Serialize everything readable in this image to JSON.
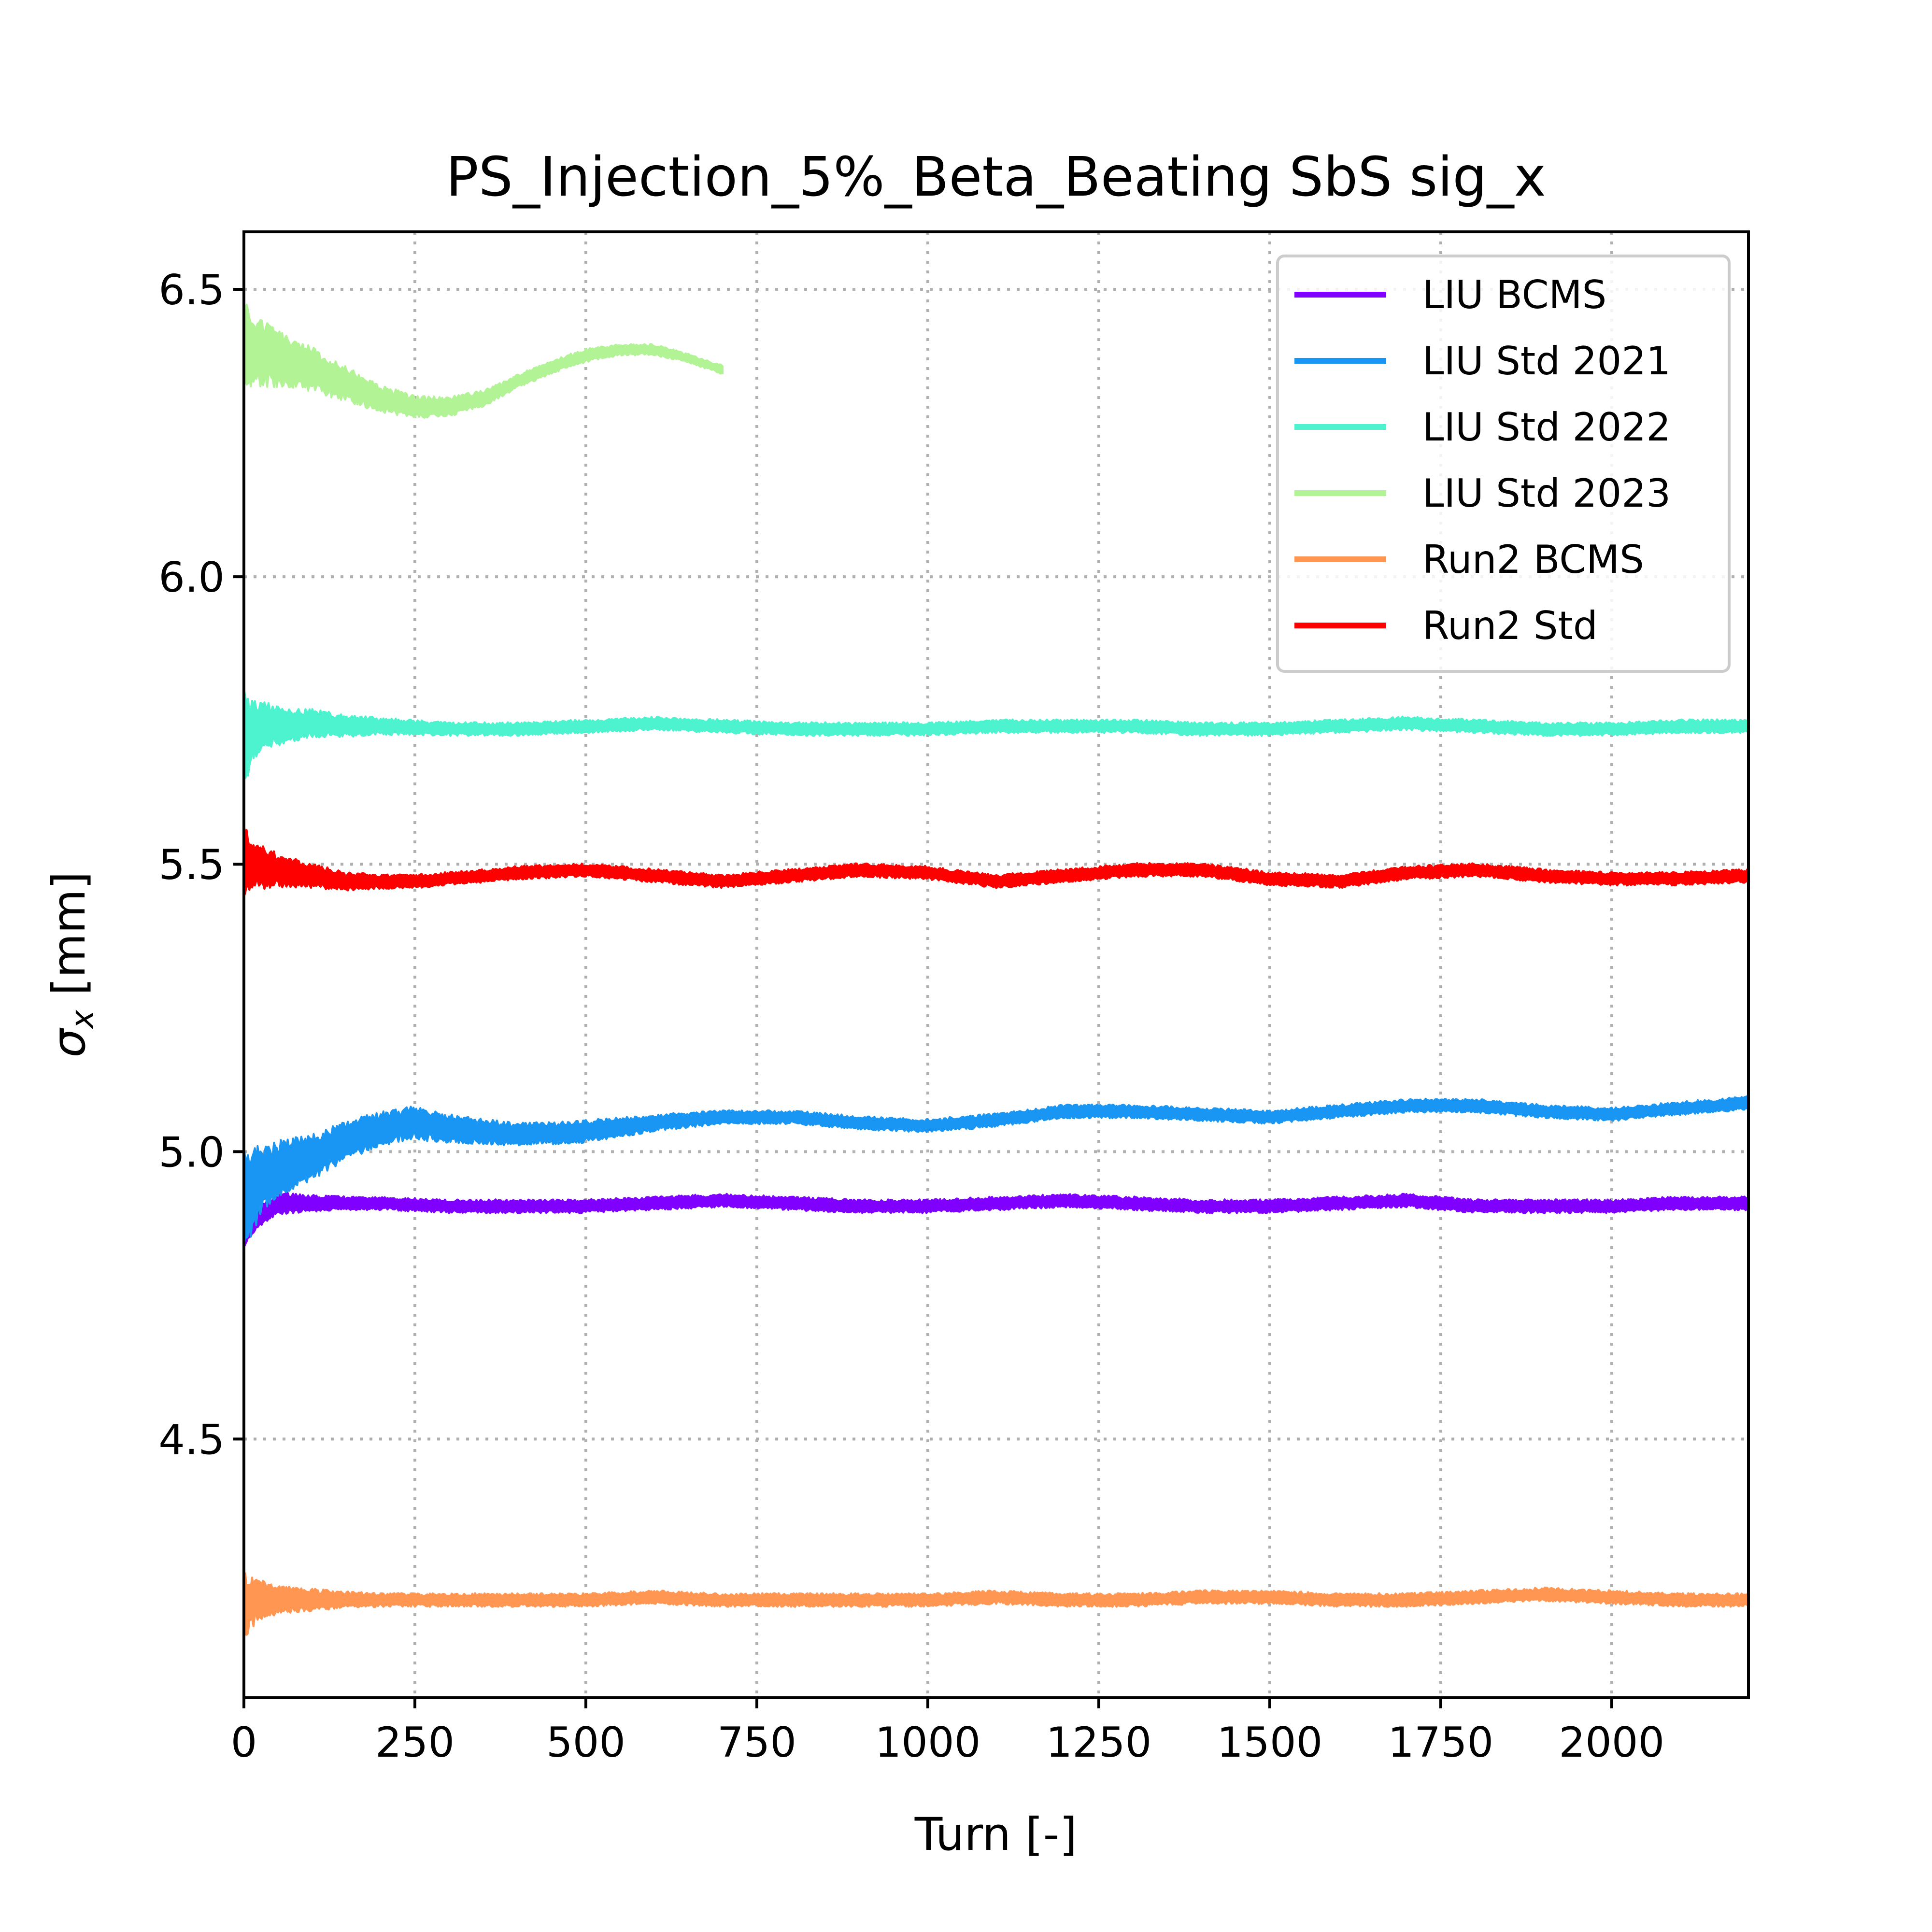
{
  "chart_data": {
    "type": "line",
    "title": "PS_Injection_5%_Beta_Beating SbS sig_x",
    "xlabel": "Turn [-]",
    "ylabel_symbol": "σ",
    "ylabel_subscript": "x",
    "ylabel_unit": " [mm]",
    "xlim": [
      0,
      2200
    ],
    "ylim": [
      4.05,
      6.6
    ],
    "xticks": [
      0,
      250,
      500,
      750,
      1000,
      1250,
      1500,
      1750,
      2000
    ],
    "xtick_labels": [
      "0",
      "250",
      "500",
      "750",
      "1000",
      "1250",
      "1500",
      "1750",
      "2000"
    ],
    "yticks": [
      4.5,
      5.0,
      5.5,
      6.0,
      6.5
    ],
    "ytick_labels": [
      "4.5",
      "5.0",
      "5.5",
      "6.0",
      "6.5"
    ],
    "grid": true,
    "legend_position": "top-right",
    "series": [
      {
        "name": "LIU BCMS",
        "color": "#8000ff",
        "x": [
          0,
          10,
          25,
          50,
          100,
          150,
          200,
          300,
          400,
          500,
          600,
          700,
          800,
          900,
          1000,
          1100,
          1200,
          1300,
          1400,
          1500,
          1600,
          1700,
          1800,
          1900,
          2000,
          2100,
          2200
        ],
        "values": [
          4.85,
          4.87,
          4.89,
          4.91,
          4.91,
          4.91,
          4.91,
          4.905,
          4.905,
          4.905,
          4.91,
          4.915,
          4.91,
          4.905,
          4.905,
          4.91,
          4.915,
          4.91,
          4.905,
          4.905,
          4.91,
          4.915,
          4.905,
          4.905,
          4.905,
          4.91,
          4.91
        ],
        "band": [
          0.02,
          0.02,
          0.02,
          0.02,
          0.015,
          0.012,
          0.012,
          0.012,
          0.012,
          0.012,
          0.012,
          0.012,
          0.012,
          0.012,
          0.012,
          0.012,
          0.012,
          0.012,
          0.012,
          0.012,
          0.012,
          0.012,
          0.012,
          0.012,
          0.012,
          0.012,
          0.012
        ]
      },
      {
        "name": "LIU Std 2021",
        "color": "#1996f3",
        "x": [
          0,
          10,
          25,
          50,
          100,
          150,
          200,
          250,
          300,
          400,
          500,
          600,
          700,
          800,
          900,
          1000,
          1100,
          1200,
          1300,
          1400,
          1500,
          1600,
          1700,
          1800,
          1900,
          2000,
          2100,
          2200
        ],
        "values": [
          4.92,
          4.93,
          4.95,
          4.97,
          4.99,
          5.02,
          5.04,
          5.05,
          5.04,
          5.03,
          5.035,
          5.05,
          5.06,
          5.06,
          5.05,
          5.045,
          5.055,
          5.07,
          5.07,
          5.065,
          5.06,
          5.07,
          5.08,
          5.08,
          5.07,
          5.065,
          5.075,
          5.085
        ],
        "band": [
          0.1,
          0.08,
          0.06,
          0.05,
          0.04,
          0.035,
          0.03,
          0.03,
          0.025,
          0.02,
          0.02,
          0.015,
          0.012,
          0.012,
          0.012,
          0.012,
          0.012,
          0.012,
          0.012,
          0.012,
          0.012,
          0.012,
          0.012,
          0.012,
          0.012,
          0.012,
          0.012,
          0.012
        ]
      },
      {
        "name": "LIU Std 2022",
        "color": "#4df3ce",
        "x": [
          0,
          10,
          25,
          50,
          100,
          150,
          200,
          300,
          400,
          500,
          600,
          700,
          800,
          900,
          1000,
          1100,
          1200,
          1300,
          1400,
          1500,
          1600,
          1700,
          1800,
          1900,
          2000,
          2100,
          2200
        ],
        "values": [
          5.72,
          5.73,
          5.74,
          5.74,
          5.745,
          5.74,
          5.74,
          5.735,
          5.735,
          5.74,
          5.745,
          5.74,
          5.735,
          5.735,
          5.735,
          5.74,
          5.74,
          5.74,
          5.735,
          5.735,
          5.74,
          5.745,
          5.74,
          5.735,
          5.735,
          5.74,
          5.74
        ],
        "band": [
          0.09,
          0.06,
          0.045,
          0.035,
          0.025,
          0.02,
          0.015,
          0.012,
          0.012,
          0.012,
          0.012,
          0.012,
          0.012,
          0.012,
          0.012,
          0.012,
          0.012,
          0.012,
          0.012,
          0.012,
          0.012,
          0.012,
          0.012,
          0.012,
          0.012,
          0.012,
          0.012
        ]
      },
      {
        "name": "LIU Std 2023",
        "color": "#b2f396",
        "x": [
          0,
          25,
          50,
          100,
          150,
          200,
          250,
          300,
          350,
          400,
          450,
          500,
          550,
          600,
          650,
          700
        ],
        "values": [
          6.4,
          6.39,
          6.38,
          6.36,
          6.335,
          6.31,
          6.295,
          6.295,
          6.31,
          6.34,
          6.365,
          6.385,
          6.395,
          6.395,
          6.38,
          6.36
        ],
        "band": [
          0.08,
          0.06,
          0.05,
          0.04,
          0.03,
          0.025,
          0.02,
          0.018,
          0.015,
          0.012,
          0.012,
          0.012,
          0.01,
          0.01,
          0.008,
          0.008
        ]
      },
      {
        "name": "Run2 BCMS",
        "color": "#ff9652",
        "x": [
          0,
          10,
          25,
          50,
          100,
          150,
          200,
          300,
          400,
          500,
          600,
          700,
          800,
          900,
          1000,
          1100,
          1200,
          1300,
          1400,
          1500,
          1600,
          1700,
          1800,
          1900,
          2000,
          2100,
          2200
        ],
        "values": [
          4.21,
          4.215,
          4.22,
          4.22,
          4.22,
          4.22,
          4.22,
          4.22,
          4.22,
          4.22,
          4.225,
          4.22,
          4.22,
          4.22,
          4.22,
          4.225,
          4.22,
          4.22,
          4.225,
          4.225,
          4.22,
          4.22,
          4.225,
          4.23,
          4.225,
          4.22,
          4.22
        ],
        "band": [
          0.06,
          0.045,
          0.035,
          0.025,
          0.02,
          0.015,
          0.012,
          0.012,
          0.012,
          0.012,
          0.012,
          0.012,
          0.012,
          0.012,
          0.012,
          0.012,
          0.012,
          0.012,
          0.012,
          0.012,
          0.012,
          0.012,
          0.012,
          0.012,
          0.012,
          0.012,
          0.012
        ]
      },
      {
        "name": "Run2 Std",
        "color": "#ff0000",
        "x": [
          0,
          10,
          25,
          50,
          100,
          150,
          200,
          250,
          300,
          400,
          500,
          600,
          700,
          800,
          900,
          1000,
          1100,
          1200,
          1300,
          1400,
          1500,
          1600,
          1700,
          1800,
          1900,
          2000,
          2100,
          2200
        ],
        "values": [
          5.5,
          5.5,
          5.495,
          5.49,
          5.48,
          5.47,
          5.47,
          5.47,
          5.475,
          5.485,
          5.49,
          5.48,
          5.47,
          5.48,
          5.49,
          5.485,
          5.47,
          5.48,
          5.49,
          5.49,
          5.475,
          5.47,
          5.485,
          5.49,
          5.48,
          5.475,
          5.475,
          5.48
        ],
        "band": [
          0.07,
          0.05,
          0.04,
          0.03,
          0.022,
          0.016,
          0.013,
          0.012,
          0.012,
          0.012,
          0.012,
          0.012,
          0.012,
          0.012,
          0.012,
          0.012,
          0.012,
          0.012,
          0.012,
          0.012,
          0.012,
          0.012,
          0.012,
          0.012,
          0.012,
          0.012,
          0.012,
          0.012
        ]
      }
    ]
  }
}
